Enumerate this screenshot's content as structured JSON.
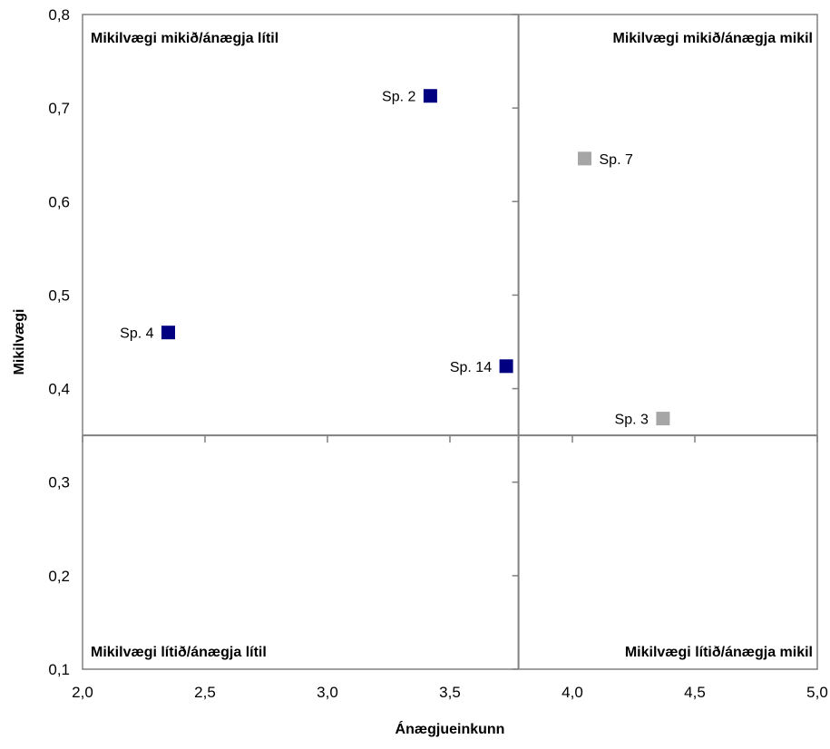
{
  "chart_data": {
    "type": "scatter",
    "title": "",
    "xlabel": "Ánægjueinkunn",
    "ylabel": "Mikilvægi",
    "xlim": [
      2.0,
      5.0
    ],
    "ylim": [
      0.1,
      0.8
    ],
    "x_ticks": [
      "2,0",
      "2,5",
      "3,0",
      "3,5",
      "4,0",
      "4,5",
      "5,0"
    ],
    "x_tick_values": [
      2.0,
      2.5,
      3.0,
      3.5,
      4.0,
      4.5,
      5.0
    ],
    "y_ticks": [
      "0,1",
      "0,2",
      "0,3",
      "0,4",
      "0,5",
      "0,6",
      "0,7",
      "0,8"
    ],
    "y_tick_values": [
      0.1,
      0.2,
      0.3,
      0.4,
      0.5,
      0.6,
      0.7,
      0.8
    ],
    "grid": false,
    "crossing_lines": {
      "x": 3.78,
      "y": 0.35
    },
    "quadrants": {
      "top_left": "Mikilvægi mikið/ánægja lítil",
      "top_right": "Mikilvægi mikið/ánægja mikil",
      "bottom_left": "Mikilvægi lítið/ánægja lítil",
      "bottom_right": "Mikilvægi lítið/ánægja mikil"
    },
    "colors": {
      "dark": "#000080",
      "light": "#A6A6A6",
      "axis": "#808080"
    },
    "points": [
      {
        "label": "Sp. 2",
        "x": 3.42,
        "y": 0.713,
        "color": "dark",
        "label_side": "left"
      },
      {
        "label": "Sp. 7",
        "x": 4.05,
        "y": 0.646,
        "color": "light",
        "label_side": "right"
      },
      {
        "label": "Sp. 4",
        "x": 2.35,
        "y": 0.46,
        "color": "dark",
        "label_side": "left"
      },
      {
        "label": "Sp. 14",
        "x": 3.73,
        "y": 0.424,
        "color": "dark",
        "label_side": "left"
      },
      {
        "label": "Sp. 3",
        "x": 4.37,
        "y": 0.368,
        "color": "light",
        "label_side": "left"
      }
    ]
  }
}
